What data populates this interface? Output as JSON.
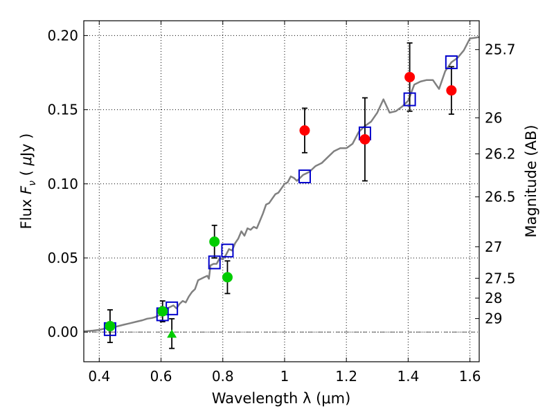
{
  "chart_data": {
    "type": "scatter",
    "xlabel": "Wavelength  λ (μm)",
    "ylabel_left": "Flux  F_ν  ( μJy )",
    "ylabel_left_parts": {
      "pre": "Flux  ",
      "var": "F",
      "sub": "ν",
      "open": "  ( ",
      "mu": "μ",
      "unit": "Jy )"
    },
    "ylabel_right": "Magnitude (AB)",
    "xlim": [
      0.35,
      1.63
    ],
    "ylim": [
      -0.02,
      0.21
    ],
    "grid": true,
    "x_ticks": [
      {
        "value": 0.4,
        "label": "0.4"
      },
      {
        "value": 0.6,
        "label": "0.6"
      },
      {
        "value": 0.8,
        "label": "0.8"
      },
      {
        "value": 1.0,
        "label": "1"
      },
      {
        "value": 1.2,
        "label": "1.2"
      },
      {
        "value": 1.4,
        "label": "1.4"
      },
      {
        "value": 1.6,
        "label": "1.6"
      }
    ],
    "y_ticks": [
      {
        "value": 0.0,
        "label": "0.00"
      },
      {
        "value": 0.05,
        "label": "0.05"
      },
      {
        "value": 0.1,
        "label": "0.10"
      },
      {
        "value": 0.15,
        "label": "0.15"
      },
      {
        "value": 0.2,
        "label": "0.20"
      }
    ],
    "mag_ticks": [
      {
        "mag": 25.7,
        "label": "25.7"
      },
      {
        "mag": 26.0,
        "label": "26"
      },
      {
        "mag": 26.2,
        "label": "26.2"
      },
      {
        "mag": 26.5,
        "label": "26.5"
      },
      {
        "mag": 27.0,
        "label": "27"
      },
      {
        "mag": 27.5,
        "label": "27.5"
      },
      {
        "mag": 28.0,
        "label": "28"
      },
      {
        "mag": 29.0,
        "label": "29"
      }
    ],
    "model_sed": {
      "color": "#808080",
      "points": [
        [
          0.35,
          0.0005
        ],
        [
          0.38,
          0.001
        ],
        [
          0.4,
          0.0015
        ],
        [
          0.42,
          0.0025
        ],
        [
          0.44,
          0.003
        ],
        [
          0.46,
          0.004
        ],
        [
          0.48,
          0.005
        ],
        [
          0.5,
          0.006
        ],
        [
          0.52,
          0.007
        ],
        [
          0.54,
          0.008
        ],
        [
          0.555,
          0.009
        ],
        [
          0.57,
          0.0095
        ],
        [
          0.58,
          0.01
        ],
        [
          0.59,
          0.011
        ],
        [
          0.6,
          0.012
        ],
        [
          0.61,
          0.014
        ],
        [
          0.62,
          0.016
        ],
        [
          0.63,
          0.017
        ],
        [
          0.64,
          0.018
        ],
        [
          0.65,
          0.016
        ],
        [
          0.66,
          0.019
        ],
        [
          0.67,
          0.021
        ],
        [
          0.68,
          0.02
        ],
        [
          0.69,
          0.024
        ],
        [
          0.7,
          0.027
        ],
        [
          0.71,
          0.029
        ],
        [
          0.72,
          0.035
        ],
        [
          0.73,
          0.036
        ],
        [
          0.74,
          0.037
        ],
        [
          0.75,
          0.038
        ],
        [
          0.755,
          0.036
        ],
        [
          0.76,
          0.045
        ],
        [
          0.77,
          0.046
        ],
        [
          0.78,
          0.046
        ],
        [
          0.79,
          0.05
        ],
        [
          0.8,
          0.049
        ],
        [
          0.81,
          0.052
        ],
        [
          0.82,
          0.056
        ],
        [
          0.83,
          0.055
        ],
        [
          0.84,
          0.06
        ],
        [
          0.85,
          0.063
        ],
        [
          0.86,
          0.068
        ],
        [
          0.87,
          0.065
        ],
        [
          0.88,
          0.07
        ],
        [
          0.89,
          0.069
        ],
        [
          0.9,
          0.071
        ],
        [
          0.91,
          0.07
        ],
        [
          0.92,
          0.075
        ],
        [
          0.93,
          0.08
        ],
        [
          0.94,
          0.086
        ],
        [
          0.95,
          0.087
        ],
        [
          0.96,
          0.09
        ],
        [
          0.97,
          0.093
        ],
        [
          0.98,
          0.094
        ],
        [
          0.99,
          0.097
        ],
        [
          1.0,
          0.1
        ],
        [
          1.01,
          0.101
        ],
        [
          1.02,
          0.105
        ],
        [
          1.03,
          0.104
        ],
        [
          1.04,
          0.102
        ],
        [
          1.05,
          0.104
        ],
        [
          1.06,
          0.106
        ],
        [
          1.08,
          0.108
        ],
        [
          1.1,
          0.112
        ],
        [
          1.12,
          0.114
        ],
        [
          1.14,
          0.118
        ],
        [
          1.16,
          0.122
        ],
        [
          1.18,
          0.124
        ],
        [
          1.2,
          0.124
        ],
        [
          1.22,
          0.127
        ],
        [
          1.24,
          0.135
        ],
        [
          1.26,
          0.139
        ],
        [
          1.28,
          0.142
        ],
        [
          1.3,
          0.148
        ],
        [
          1.32,
          0.157
        ],
        [
          1.34,
          0.148
        ],
        [
          1.36,
          0.149
        ],
        [
          1.38,
          0.152
        ],
        [
          1.4,
          0.156
        ],
        [
          1.42,
          0.167
        ],
        [
          1.44,
          0.169
        ],
        [
          1.46,
          0.17
        ],
        [
          1.48,
          0.17
        ],
        [
          1.5,
          0.164
        ],
        [
          1.52,
          0.176
        ],
        [
          1.54,
          0.182
        ],
        [
          1.56,
          0.185
        ],
        [
          1.58,
          0.19
        ],
        [
          1.6,
          0.198
        ],
        [
          1.63,
          0.199
        ]
      ]
    },
    "series": [
      {
        "marker": "square-open",
        "color": "#0000cc",
        "points": [
          {
            "x": 0.435,
            "y": 0.002
          },
          {
            "x": 0.605,
            "y": 0.012
          },
          {
            "x": 0.635,
            "y": 0.016
          },
          {
            "x": 0.773,
            "y": 0.047
          },
          {
            "x": 0.815,
            "y": 0.055
          },
          {
            "x": 1.065,
            "y": 0.105
          },
          {
            "x": 1.26,
            "y": 0.134
          },
          {
            "x": 1.405,
            "y": 0.157
          },
          {
            "x": 1.54,
            "y": 0.182
          }
        ]
      },
      {
        "marker": "circle",
        "color": "#00cc00",
        "points": [
          {
            "x": 0.435,
            "y": 0.004,
            "yerr": 0.011
          },
          {
            "x": 0.605,
            "y": 0.014,
            "yerr": 0.007
          },
          {
            "x": 0.773,
            "y": 0.061,
            "yerr": 0.011
          },
          {
            "x": 0.815,
            "y": 0.037,
            "yerr": 0.011
          }
        ]
      },
      {
        "marker": "triangle",
        "color": "#00cc00",
        "points": [
          {
            "x": 0.635,
            "y": -0.001,
            "yerr": 0.01
          }
        ]
      },
      {
        "marker": "circle",
        "color": "#ff0000",
        "points": [
          {
            "x": 1.065,
            "y": 0.136,
            "yerr": 0.015
          },
          {
            "x": 1.26,
            "y": 0.13,
            "yerr": 0.028
          },
          {
            "x": 1.405,
            "y": 0.172,
            "yerr": 0.023
          },
          {
            "x": 1.54,
            "y": 0.163,
            "yerr": 0.016
          }
        ]
      }
    ]
  }
}
